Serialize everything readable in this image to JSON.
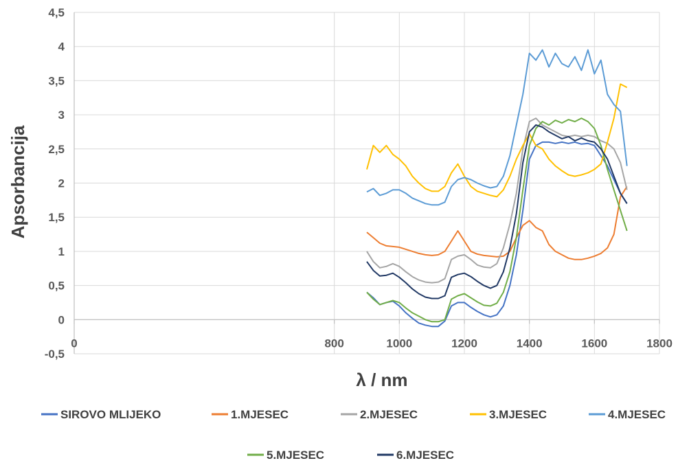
{
  "chart_data": {
    "type": "line",
    "title": "",
    "xlabel": "λ / nm",
    "ylabel": "Apsorbancija",
    "xlim": [
      0,
      1800
    ],
    "ylim": [
      -0.5,
      4.5
    ],
    "x_ticks": [
      0,
      800,
      1000,
      1200,
      1400,
      1600,
      1800
    ],
    "x_tick_labels": [
      "0",
      "800",
      "1000",
      "1200",
      "1400",
      "1600",
      "1800"
    ],
    "y_ticks": [
      -0.5,
      0,
      0.5,
      1,
      1.5,
      2,
      2.5,
      3,
      3.5,
      4,
      4.5
    ],
    "y_tick_labels": [
      "-0,5",
      "0",
      "0,5",
      "1",
      "1,5",
      "2",
      "2,5",
      "3",
      "3,5",
      "4",
      "4,5"
    ],
    "grid": true,
    "legend_position": "bottom",
    "x": [
      900,
      920,
      940,
      960,
      980,
      1000,
      1020,
      1040,
      1060,
      1080,
      1100,
      1120,
      1140,
      1160,
      1180,
      1200,
      1220,
      1240,
      1260,
      1280,
      1300,
      1320,
      1340,
      1360,
      1380,
      1400,
      1420,
      1440,
      1460,
      1480,
      1500,
      1520,
      1540,
      1560,
      1580,
      1600,
      1620,
      1640,
      1660,
      1680,
      1700
    ],
    "series": [
      {
        "name": "SIROVO MLIJEKO",
        "color": "#4472C4",
        "values": [
          0.4,
          0.32,
          0.22,
          0.25,
          0.27,
          0.2,
          0.1,
          0.02,
          -0.05,
          -0.08,
          -0.1,
          -0.1,
          -0.02,
          0.2,
          0.25,
          0.25,
          0.18,
          0.12,
          0.07,
          0.04,
          0.07,
          0.2,
          0.5,
          0.95,
          1.6,
          2.35,
          2.55,
          2.6,
          2.6,
          2.58,
          2.6,
          2.58,
          2.6,
          2.57,
          2.58,
          2.55,
          2.4,
          2.25,
          2.05,
          1.85,
          1.7
        ]
      },
      {
        "name": "1.MJESEC",
        "color": "#ED7D31",
        "values": [
          1.28,
          1.2,
          1.12,
          1.08,
          1.07,
          1.06,
          1.03,
          1.0,
          0.97,
          0.95,
          0.94,
          0.95,
          1.0,
          1.15,
          1.3,
          1.15,
          1.0,
          0.96,
          0.94,
          0.93,
          0.92,
          0.93,
          1.0,
          1.2,
          1.38,
          1.45,
          1.35,
          1.3,
          1.1,
          1.0,
          0.95,
          0.9,
          0.88,
          0.88,
          0.9,
          0.93,
          0.97,
          1.05,
          1.25,
          1.8,
          1.95
        ]
      },
      {
        "name": "2.MJESEC",
        "color": "#A5A5A5",
        "values": [
          1.0,
          0.85,
          0.76,
          0.78,
          0.82,
          0.78,
          0.7,
          0.63,
          0.58,
          0.55,
          0.54,
          0.55,
          0.6,
          0.88,
          0.93,
          0.95,
          0.88,
          0.8,
          0.77,
          0.76,
          0.82,
          1.05,
          1.4,
          1.85,
          2.5,
          2.9,
          2.95,
          2.85,
          2.8,
          2.75,
          2.7,
          2.68,
          2.7,
          2.68,
          2.7,
          2.68,
          2.62,
          2.58,
          2.5,
          2.3,
          1.9
        ]
      },
      {
        "name": "3.MJESEC",
        "color": "#FFC000",
        "values": [
          2.2,
          2.55,
          2.45,
          2.55,
          2.42,
          2.35,
          2.25,
          2.1,
          2.0,
          1.92,
          1.88,
          1.88,
          1.95,
          2.15,
          2.28,
          2.1,
          1.95,
          1.88,
          1.85,
          1.82,
          1.8,
          1.9,
          2.1,
          2.35,
          2.55,
          2.72,
          2.55,
          2.5,
          2.35,
          2.25,
          2.18,
          2.12,
          2.1,
          2.12,
          2.15,
          2.2,
          2.28,
          2.6,
          2.95,
          3.45,
          3.4
        ]
      },
      {
        "name": "4.MJESEC",
        "color": "#5B9BD5",
        "values": [
          1.87,
          1.92,
          1.82,
          1.85,
          1.9,
          1.9,
          1.85,
          1.78,
          1.74,
          1.7,
          1.68,
          1.68,
          1.72,
          1.95,
          2.05,
          2.08,
          2.05,
          2.0,
          1.96,
          1.93,
          1.95,
          2.1,
          2.4,
          2.85,
          3.3,
          3.9,
          3.8,
          3.95,
          3.7,
          3.9,
          3.75,
          3.7,
          3.85,
          3.65,
          3.95,
          3.6,
          3.8,
          3.3,
          3.15,
          3.05,
          2.25
        ]
      },
      {
        "name": "5.MJESEC",
        "color": "#70AD47",
        "values": [
          0.4,
          0.3,
          0.22,
          0.25,
          0.28,
          0.25,
          0.17,
          0.1,
          0.05,
          0.0,
          -0.03,
          -0.03,
          0.0,
          0.3,
          0.35,
          0.38,
          0.32,
          0.26,
          0.21,
          0.2,
          0.24,
          0.4,
          0.7,
          1.2,
          1.9,
          2.55,
          2.8,
          2.9,
          2.85,
          2.92,
          2.88,
          2.93,
          2.9,
          2.95,
          2.9,
          2.8,
          2.55,
          2.2,
          1.9,
          1.6,
          1.3
        ]
      },
      {
        "name": "6.MJESEC",
        "color": "#203864",
        "values": [
          0.85,
          0.72,
          0.64,
          0.65,
          0.68,
          0.62,
          0.54,
          0.45,
          0.38,
          0.33,
          0.31,
          0.31,
          0.35,
          0.62,
          0.66,
          0.68,
          0.63,
          0.56,
          0.5,
          0.46,
          0.5,
          0.7,
          1.05,
          1.55,
          2.3,
          2.75,
          2.85,
          2.82,
          2.75,
          2.7,
          2.65,
          2.68,
          2.62,
          2.66,
          2.62,
          2.6,
          2.5,
          2.35,
          2.1,
          1.85,
          1.7
        ]
      }
    ]
  }
}
